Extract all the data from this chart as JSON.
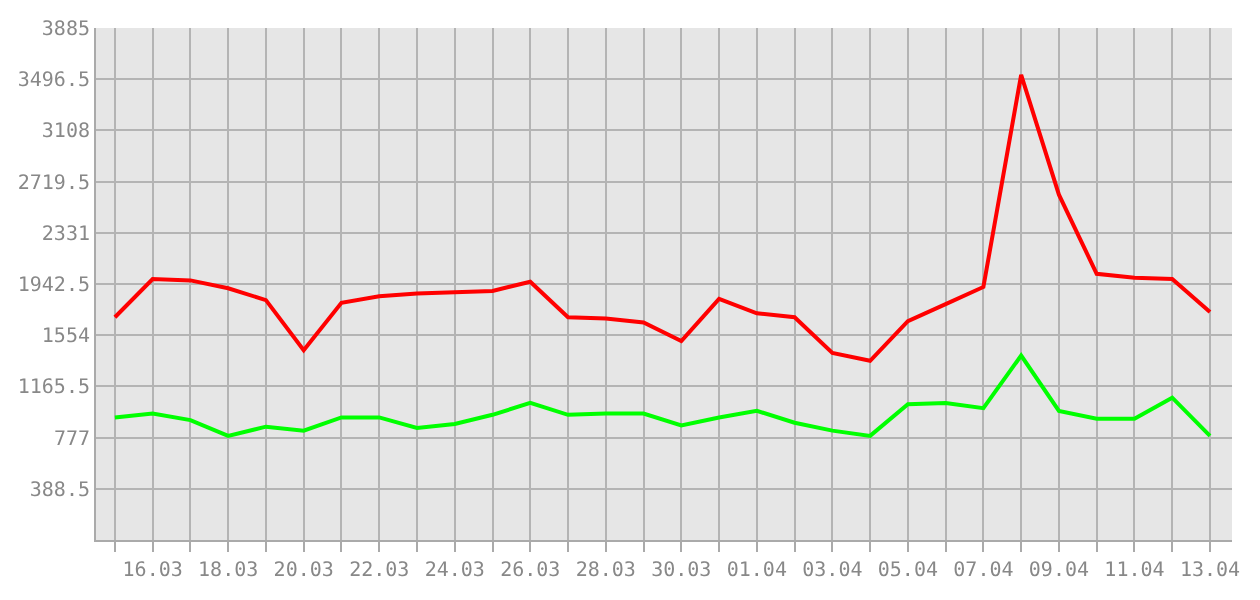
{
  "chart_data": {
    "type": "line",
    "x": [
      "--03-15",
      "--03-16",
      "--03-17",
      "--03-18",
      "--03-19",
      "--03-20",
      "--03-21",
      "--03-22",
      "--03-23",
      "--03-24",
      "--03-25",
      "--03-26",
      "--03-27",
      "--03-28",
      "--03-29",
      "--03-30",
      "--03-31",
      "--04-01",
      "--04-02",
      "--04-03",
      "--04-04",
      "--04-05",
      "--04-06",
      "--04-07",
      "--04-08",
      "--04-09",
      "--04-10",
      "--04-11",
      "--04-12",
      "--04-13"
    ],
    "series": [
      {
        "color": "#ff0000",
        "values": [
          1690,
          1980,
          1970,
          1910,
          1820,
          1440,
          1800,
          1850,
          1870,
          1880,
          1890,
          1960,
          1690,
          1680,
          1650,
          1510,
          1830,
          1720,
          1690,
          1420,
          1360,
          1660,
          1790,
          1920,
          3530,
          2620,
          2020,
          1990,
          1980,
          1730
        ]
      },
      {
        "color": "#00ff00",
        "values": [
          930,
          960,
          910,
          790,
          860,
          830,
          930,
          930,
          850,
          880,
          950,
          1040,
          950,
          960,
          960,
          870,
          930,
          980,
          890,
          830,
          790,
          1030,
          1040,
          1000,
          1400,
          980,
          920,
          920,
          1080,
          790
        ]
      }
    ],
    "ylim": [
      0,
      3885
    ],
    "yticks": [
      388.5,
      777,
      1165.5,
      1554,
      1942.5,
      2331,
      2719.5,
      3108,
      3496.5,
      3885
    ],
    "xlim": [
      "--03-14T12:00",
      "--04-13T14:00"
    ],
    "xticks": [
      {
        "value": "--03-15",
        "label": null
      },
      {
        "value": "--03-16",
        "label": "16.03"
      },
      {
        "value": "--03-17",
        "label": null
      },
      {
        "value": "--03-18",
        "label": "18.03"
      },
      {
        "value": "--03-19",
        "label": null
      },
      {
        "value": "--03-20",
        "label": "20.03"
      },
      {
        "value": "--03-21",
        "label": null
      },
      {
        "value": "--03-22",
        "label": "22.03"
      },
      {
        "value": "--03-23",
        "label": null
      },
      {
        "value": "--03-24",
        "label": "24.03"
      },
      {
        "value": "--03-25",
        "label": null
      },
      {
        "value": "--03-26",
        "label": "26.03"
      },
      {
        "value": "--03-27",
        "label": null
      },
      {
        "value": "--03-28",
        "label": "28.03"
      },
      {
        "value": "--03-29",
        "label": null
      },
      {
        "value": "--03-30",
        "label": "30.03"
      },
      {
        "value": "--03-31",
        "label": null
      },
      {
        "value": "--04-01",
        "label": "01.04"
      },
      {
        "value": "--04-02",
        "label": null
      },
      {
        "value": "--04-03",
        "label": "03.04"
      },
      {
        "value": "--04-04",
        "label": null
      },
      {
        "value": "--04-05",
        "label": "05.04"
      },
      {
        "value": "--04-06",
        "label": null
      },
      {
        "value": "--04-07",
        "label": "07.04"
      },
      {
        "value": "--04-08",
        "label": null
      },
      {
        "value": "--04-09",
        "label": "09.04"
      },
      {
        "value": "--04-10",
        "label": null
      },
      {
        "value": "--04-11",
        "label": "11.04"
      },
      {
        "value": "--04-12",
        "label": null
      },
      {
        "value": "--04-13",
        "label": "13.04"
      }
    ],
    "grid": true,
    "marker": "none",
    "line_style": "solid"
  }
}
